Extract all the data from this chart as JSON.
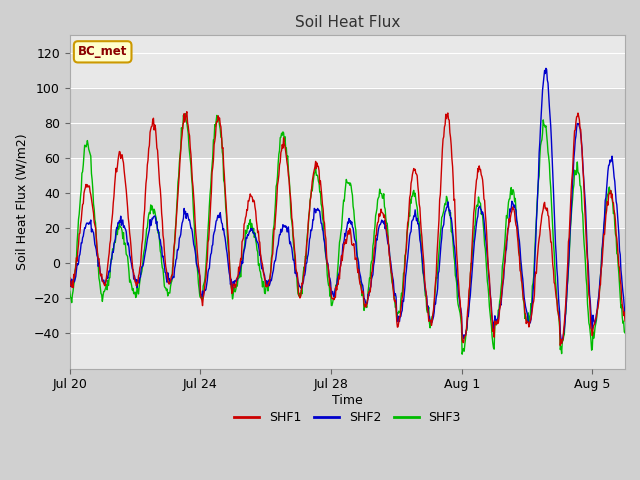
{
  "title": "Soil Heat Flux",
  "xlabel": "Time",
  "ylabel": "Soil Heat Flux (W/m2)",
  "ylim": [
    -60,
    130
  ],
  "yticks": [
    -40,
    -20,
    0,
    20,
    40,
    60,
    80,
    100,
    120
  ],
  "fig_bg": "#d0d0d0",
  "plot_bg": "#e8e8e8",
  "line_colors": {
    "SHF1": "#cc0000",
    "SHF2": "#0000cc",
    "SHF3": "#00bb00"
  },
  "legend_label": "BC_met",
  "legend_box_facecolor": "#ffffcc",
  "legend_box_edgecolor": "#cc9900",
  "shaded_band1": {
    "ymin": -20,
    "ymax": 20
  },
  "shaded_band2": {
    "ymin": 60,
    "ymax": 100
  },
  "shaded_color": "#cccccc",
  "xtick_labels": [
    "Jul 20",
    "Jul 24",
    "Jul 28",
    "Aug 1",
    "Aug 5"
  ],
  "xtick_positions": [
    0,
    4,
    8,
    12,
    16
  ],
  "n_days": 17
}
